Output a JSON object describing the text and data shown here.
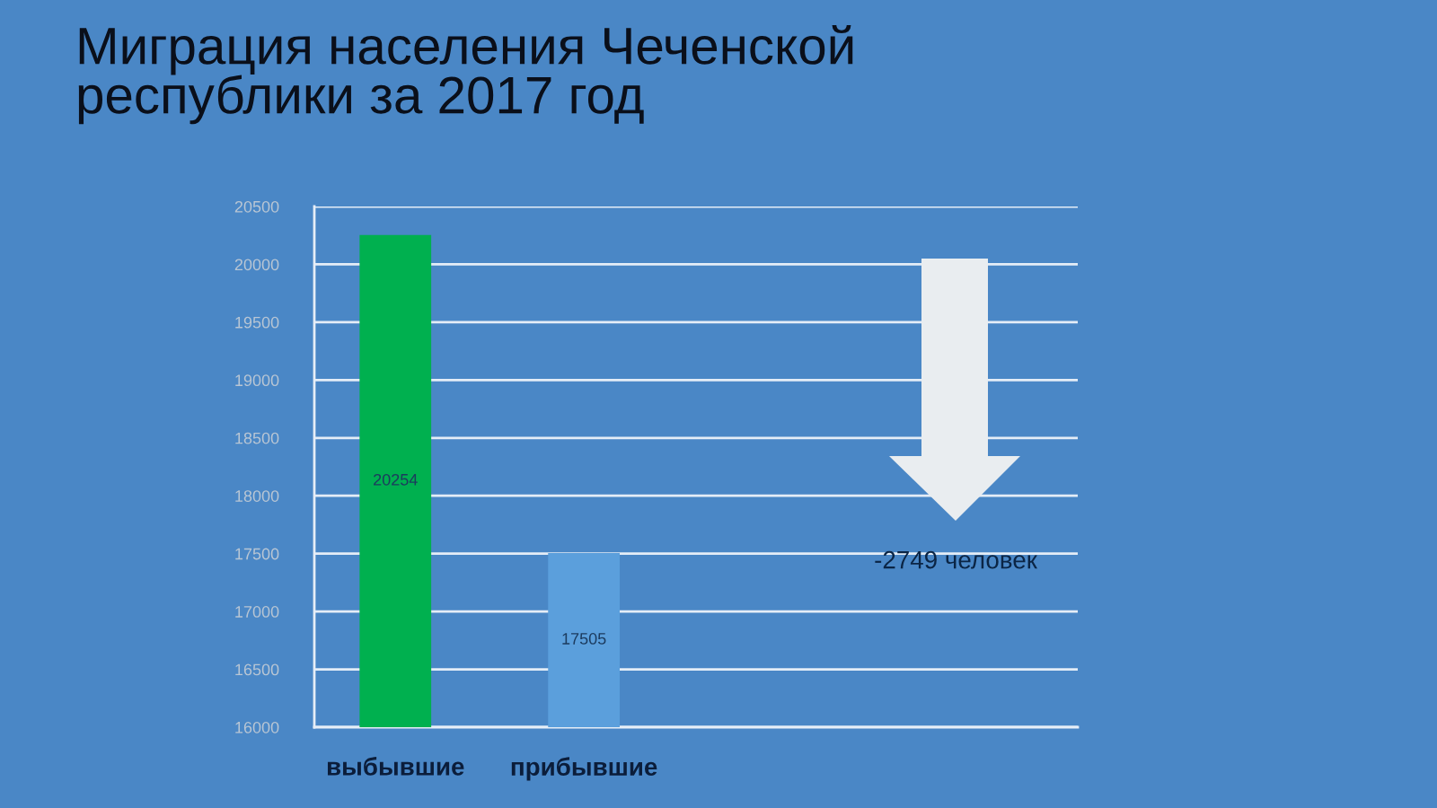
{
  "chart_data": {
    "type": "bar",
    "title": "Миграция населения Чеченской\nреспублики за 2017 год",
    "categories": [
      "выбывшие",
      "прибывшие"
    ],
    "values": [
      20254,
      17505
    ],
    "colors": [
      "#00b04f",
      "#5b9fdc"
    ],
    "ylim": [
      16000,
      20500
    ],
    "yticks": [
      16000,
      16500,
      17000,
      17500,
      18000,
      18500,
      19000,
      19500,
      20000,
      20500
    ],
    "grid": "y",
    "data_labels": true,
    "annotations": [
      "-2749 человек"
    ]
  }
}
